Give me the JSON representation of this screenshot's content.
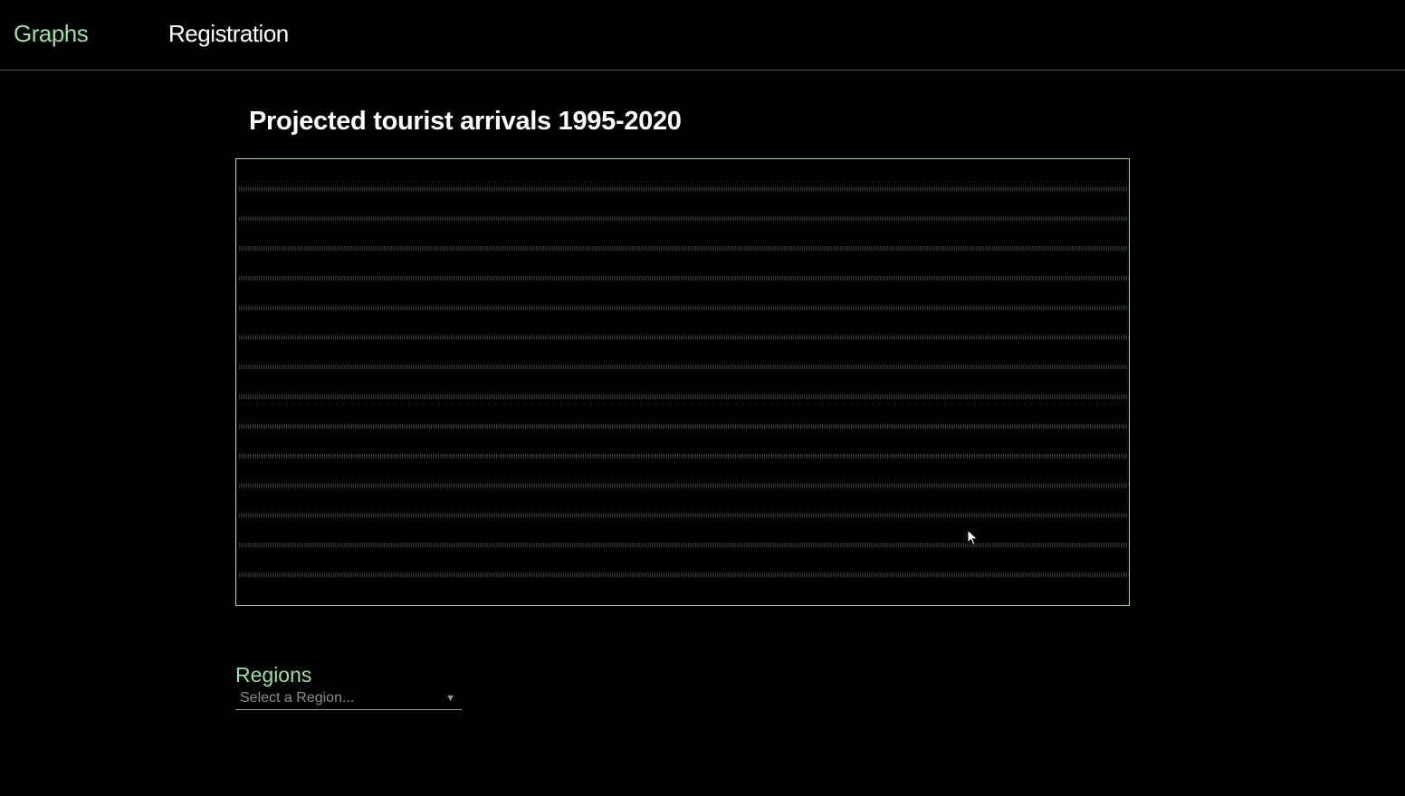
{
  "nav": {
    "graphs_label": "Graphs",
    "registration_label": "Registration"
  },
  "chart": {
    "title": "Projected tourist arrivals 1995-2020",
    "gridline_count": 14
  },
  "filters": {
    "regions_label": "Regions",
    "region_placeholder": "Select a Region..."
  },
  "icons": {
    "dropdown_arrow": "chevron-down-icon",
    "mouse_cursor": "arrow-cursor-icon"
  },
  "colors": {
    "accent_green": "#9be39a",
    "chart_border": "#a8d89a",
    "background": "#000000"
  }
}
